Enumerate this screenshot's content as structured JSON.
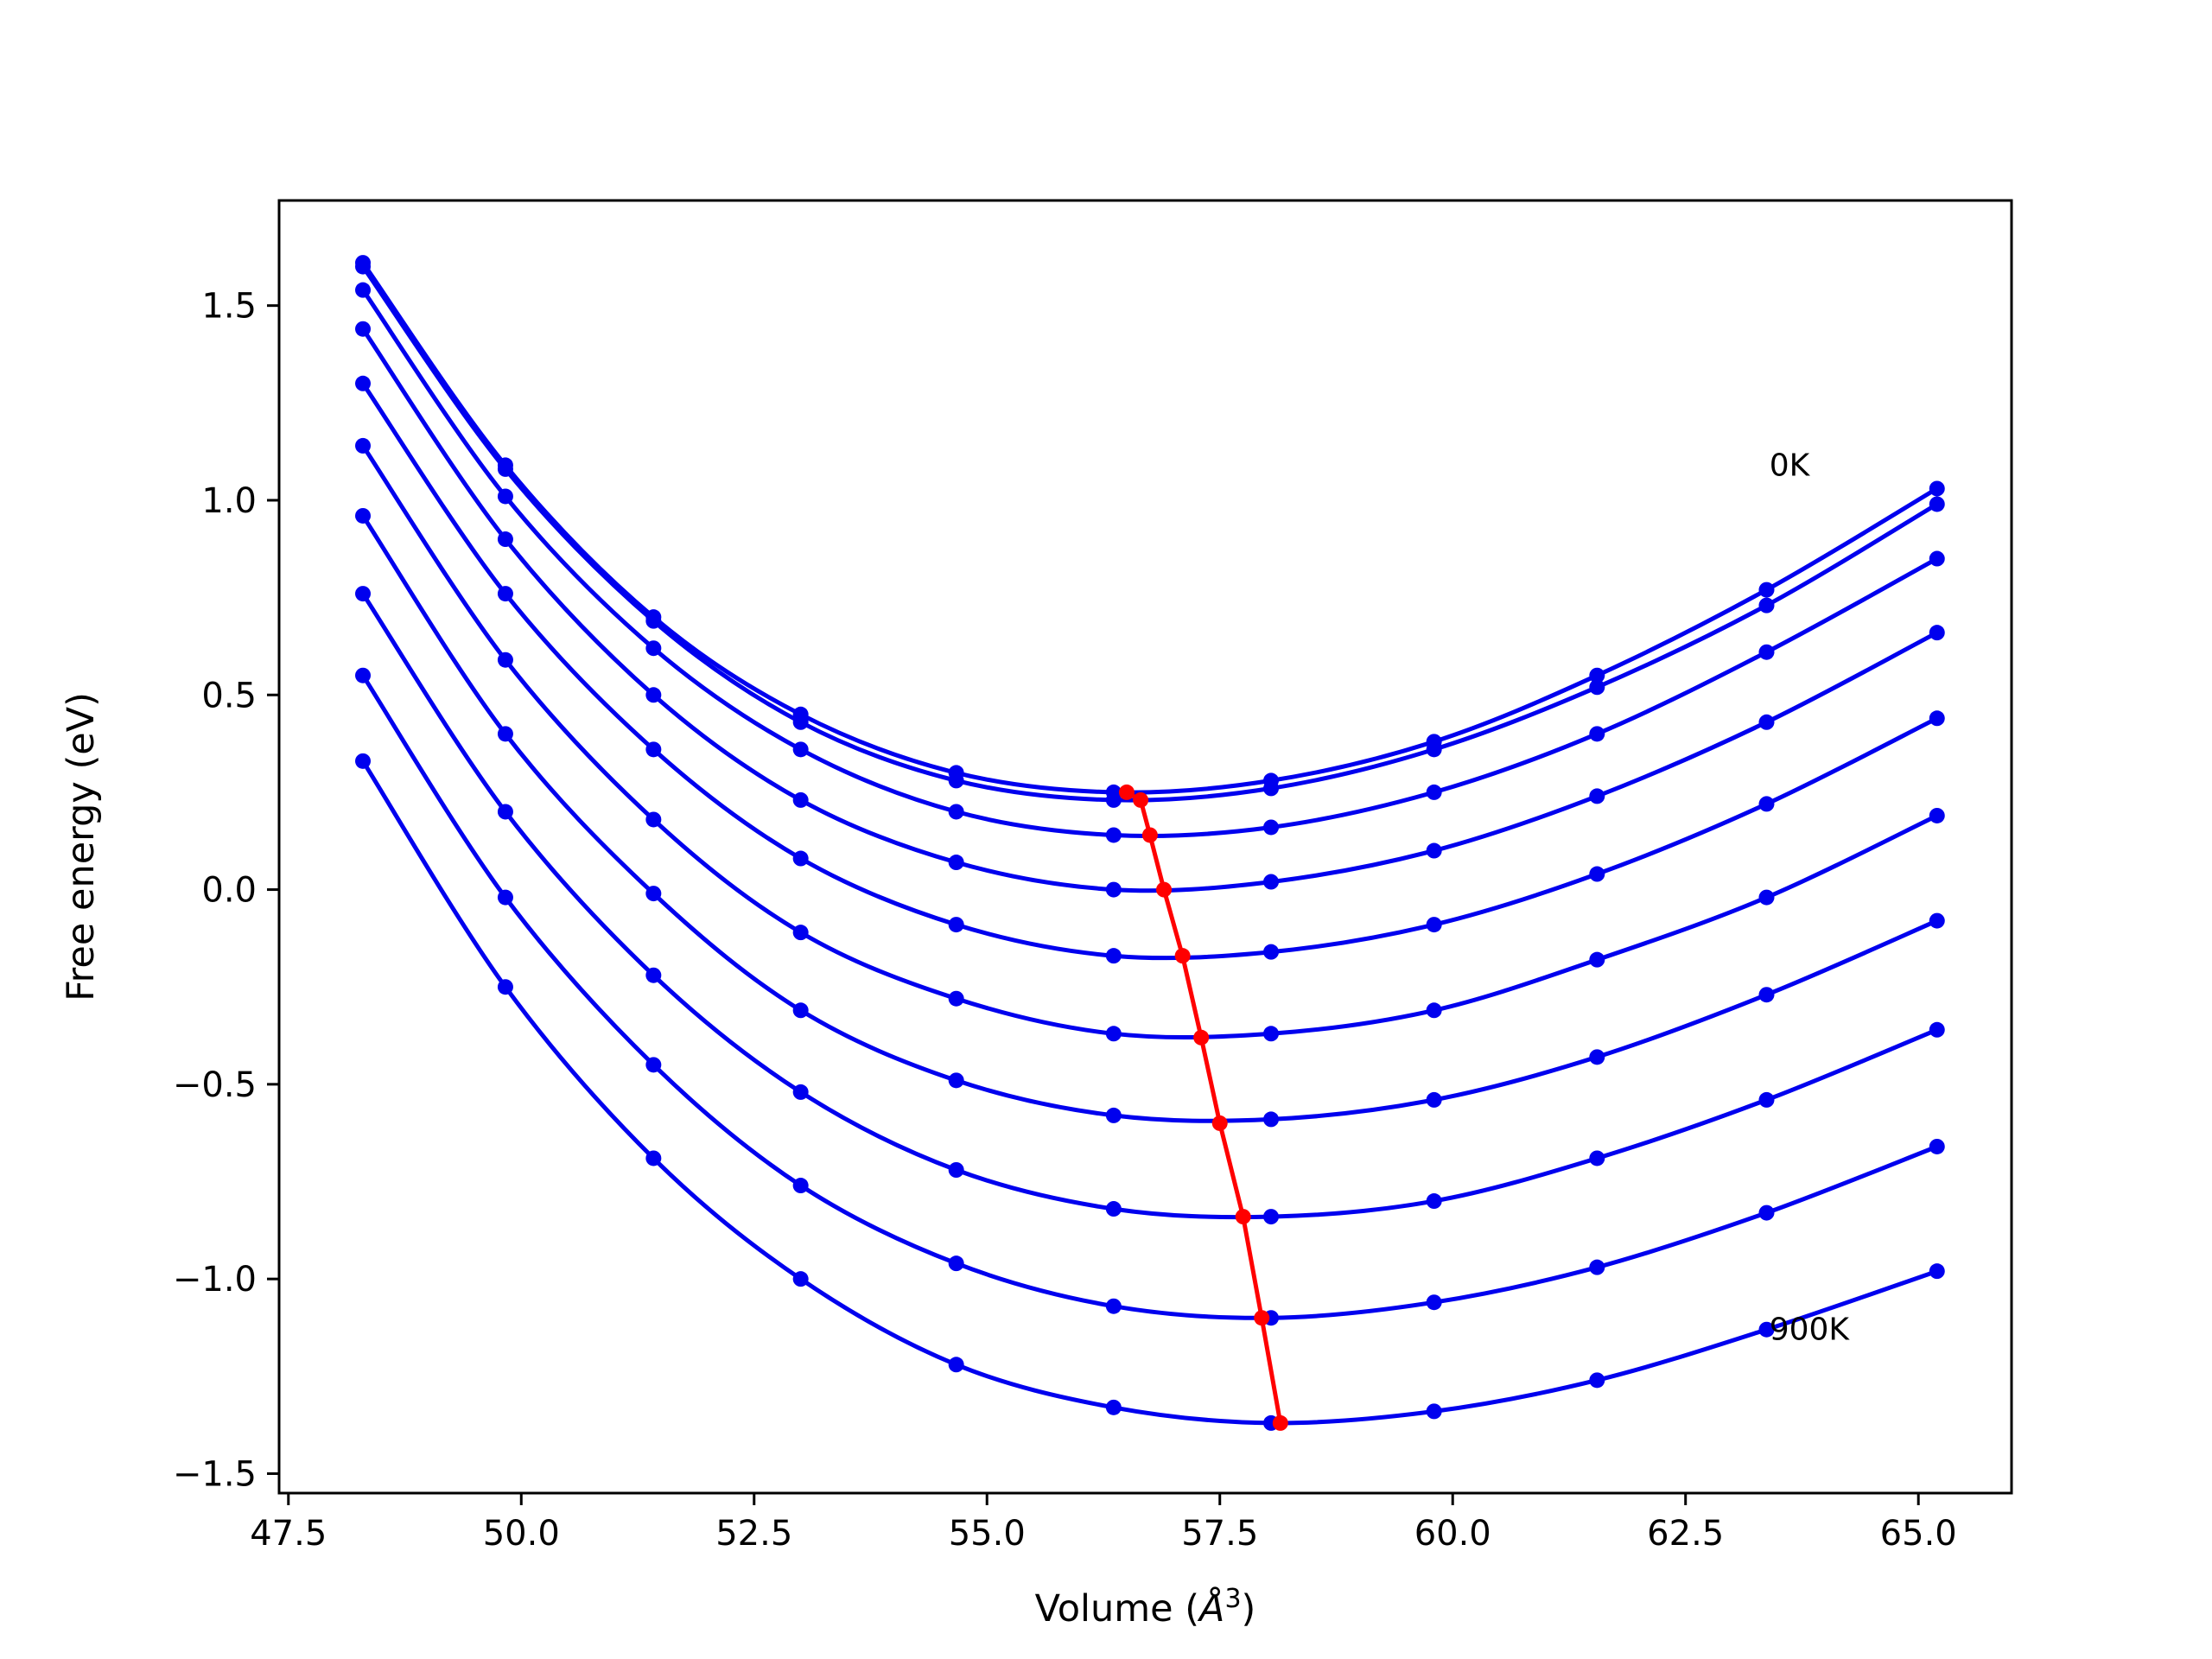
{
  "chart_data": {
    "type": "line",
    "xlabel": "Volume (",
    "xlabel_symbol": "Å",
    "xlabel_exp": "3",
    "xlabel_end": ")",
    "ylabel": "Free energy (eV)",
    "xlim": [
      47.4,
      66.0
    ],
    "ylim": [
      -1.55,
      1.77
    ],
    "xticks": [
      47.5,
      50.0,
      52.5,
      55.0,
      57.5,
      60.0,
      62.5,
      65.0
    ],
    "xtick_labels": [
      "47.5",
      "50.0",
      "52.5",
      "55.0",
      "57.5",
      "60.0",
      "62.5",
      "65.0"
    ],
    "yticks": [
      1.5,
      1.0,
      0.5,
      0.0,
      -0.5,
      -1.0,
      -1.5
    ],
    "ytick_labels": [
      "1.5",
      "1.0",
      "0.5",
      "0.0",
      "−0.5",
      "−1.0",
      "−1.5"
    ],
    "grid": false,
    "volumes": [
      48.3,
      49.83,
      51.42,
      53.0,
      54.67,
      56.36,
      58.05,
      59.8,
      61.55,
      63.37,
      65.2
    ],
    "series": [
      {
        "values": [
          1.61,
          1.09,
          0.7,
          0.45,
          0.3,
          0.25,
          0.28,
          0.38,
          0.55,
          0.77,
          1.03
        ]
      },
      {
        "values": [
          1.6,
          1.08,
          0.69,
          0.43,
          0.28,
          0.23,
          0.26,
          0.36,
          0.52,
          0.73,
          0.99
        ]
      },
      {
        "values": [
          1.54,
          1.01,
          0.62,
          0.36,
          0.2,
          0.14,
          0.16,
          0.25,
          0.4,
          0.61,
          0.85
        ]
      },
      {
        "values": [
          1.44,
          0.9,
          0.5,
          0.23,
          0.07,
          0.0,
          0.02,
          0.1,
          0.24,
          0.43,
          0.66
        ]
      },
      {
        "values": [
          1.3,
          0.76,
          0.36,
          0.08,
          -0.09,
          -0.17,
          -0.16,
          -0.09,
          0.04,
          0.22,
          0.44
        ]
      },
      {
        "values": [
          1.14,
          0.59,
          0.18,
          -0.11,
          -0.28,
          -0.37,
          -0.37,
          -0.31,
          -0.18,
          -0.02,
          0.19
        ]
      },
      {
        "values": [
          0.96,
          0.4,
          -0.01,
          -0.31,
          -0.49,
          -0.58,
          -0.59,
          -0.54,
          -0.43,
          -0.27,
          -0.08
        ]
      },
      {
        "values": [
          0.76,
          0.2,
          -0.22,
          -0.52,
          -0.72,
          -0.82,
          -0.84,
          -0.8,
          -0.69,
          -0.54,
          -0.36
        ]
      },
      {
        "values": [
          0.55,
          -0.02,
          -0.45,
          -0.76,
          -0.96,
          -1.07,
          -1.1,
          -1.06,
          -0.97,
          -0.83,
          -0.66
        ]
      },
      {
        "values": [
          0.33,
          -0.25,
          -0.69,
          -1.0,
          -1.22,
          -1.33,
          -1.37,
          -1.34,
          -1.26,
          -1.13,
          -0.98
        ]
      }
    ],
    "minimum_path": {
      "x": [
        56.5,
        56.65,
        56.75,
        56.9,
        57.1,
        57.3,
        57.5,
        57.75,
        57.95,
        58.15
      ],
      "y": [
        0.25,
        0.23,
        0.14,
        0.0,
        -0.17,
        -0.38,
        -0.6,
        -0.84,
        -1.1,
        -1.37
      ]
    },
    "annotations": [
      {
        "text": "0K",
        "x": 63.4,
        "y": 1.09
      },
      {
        "text": "900K",
        "x": 63.4,
        "y": -1.13
      }
    ],
    "colors": {
      "series": "#0000ee",
      "minimum_path": "#ff0000"
    }
  }
}
